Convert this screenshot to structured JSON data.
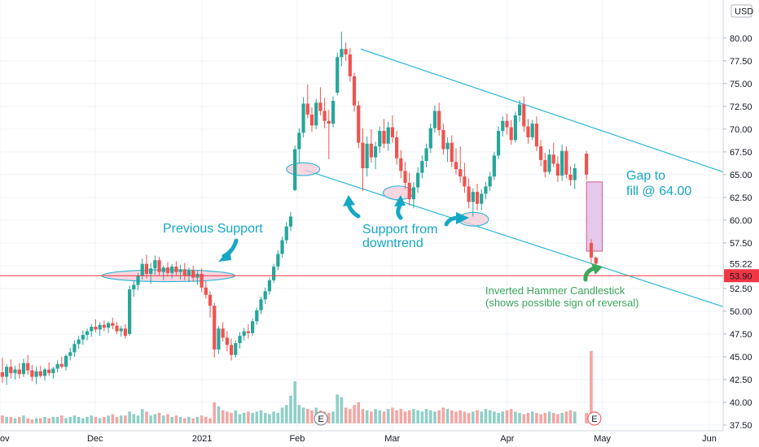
{
  "chart_data": {
    "type": "candlestick",
    "title": "",
    "currency": "USD",
    "current_price": 53.9,
    "last_close_marker": 55.22,
    "ylim": [
      37.0,
      82.5
    ],
    "y_ticks": [
      37.5,
      40.0,
      42.5,
      45.0,
      47.5,
      50.0,
      52.5,
      55.0,
      57.5,
      60.0,
      62.5,
      65.0,
      67.5,
      70.0,
      72.5,
      75.0,
      77.5,
      80.0
    ],
    "y_tick_labels": [
      "37.50",
      "40.00",
      "42.50",
      "45.00",
      "47.50",
      "50.00",
      "52.50",
      "55.00",
      "57.50",
      "60.00",
      "62.50",
      "65.00",
      "67.50",
      "70.00",
      "72.50",
      "75.00",
      "77.50",
      "80.00"
    ],
    "x_ticks": [
      {
        "label": "ov",
        "t": 0
      },
      {
        "label": "Dec",
        "t": 24
      },
      {
        "label": "2021",
        "t": 51
      },
      {
        "label": "Feb",
        "t": 75
      },
      {
        "label": "Mar",
        "t": 99
      },
      {
        "label": "Apr",
        "t": 128
      },
      {
        "label": "May",
        "t": 152
      },
      {
        "label": "Jun",
        "t": 179
      }
    ],
    "x_range": [
      0,
      182.5
    ],
    "colors": {
      "up": "#26a69a",
      "down": "#ef5350",
      "vol_up": "#8fcfc7",
      "vol_down": "#f5a5a3",
      "price_line": "#f23645",
      "channel": "#29b6d6",
      "gap_fill": "#e6c8ea",
      "gap_border": "#d05c8a",
      "ellipse_fill": "#f4c9d6",
      "ellipse_stroke": "#29b6d6",
      "blue_text": "#15a8c4",
      "green_text": "#3aa85a"
    },
    "candles": [
      [
        43.3,
        44.9,
        42.1,
        42.8
      ],
      [
        42.8,
        44.2,
        41.9,
        43.9
      ],
      [
        43.9,
        44.7,
        42.6,
        43.2
      ],
      [
        43.2,
        44.0,
        42.5,
        43.6
      ],
      [
        43.6,
        44.3,
        42.6,
        43.1
      ],
      [
        43.1,
        44.8,
        42.8,
        44.3
      ],
      [
        44.3,
        45.2,
        43.0,
        43.5
      ],
      [
        43.5,
        44.1,
        42.3,
        42.8
      ],
      [
        42.8,
        43.9,
        42.0,
        43.4
      ],
      [
        43.4,
        44.0,
        42.7,
        42.9
      ],
      [
        42.9,
        43.8,
        42.4,
        43.6
      ],
      [
        43.6,
        44.4,
        42.9,
        43.2
      ],
      [
        43.2,
        43.9,
        42.6,
        43.7
      ],
      [
        43.7,
        44.6,
        43.3,
        44.2
      ],
      [
        44.2,
        45.0,
        43.7,
        43.9
      ],
      [
        43.9,
        45.3,
        43.5,
        45.1
      ],
      [
        45.1,
        46.0,
        44.6,
        45.5
      ],
      [
        45.5,
        46.8,
        45.0,
        46.4
      ],
      [
        46.4,
        47.3,
        45.9,
        46.9
      ],
      [
        46.9,
        47.9,
        46.3,
        47.4
      ],
      [
        47.4,
        48.1,
        46.8,
        47.8
      ],
      [
        47.8,
        48.6,
        47.2,
        48.3
      ],
      [
        48.3,
        49.1,
        47.7,
        48.0
      ],
      [
        48.0,
        48.8,
        47.3,
        48.5
      ],
      [
        48.5,
        49.0,
        47.8,
        48.2
      ],
      [
        48.2,
        48.9,
        47.6,
        48.7
      ],
      [
        48.7,
        49.3,
        48.0,
        48.4
      ],
      [
        48.4,
        48.8,
        47.5,
        47.8
      ],
      [
        47.8,
        48.4,
        47.2,
        48.1
      ],
      [
        48.1,
        48.6,
        47.0,
        47.3
      ],
      [
        47.5,
        52.8,
        47.3,
        52.4
      ],
      [
        52.4,
        53.4,
        51.6,
        52.9
      ],
      [
        52.9,
        54.2,
        52.3,
        53.9
      ],
      [
        53.9,
        55.8,
        53.5,
        55.2
      ],
      [
        55.2,
        56.2,
        53.6,
        54.1
      ],
      [
        54.1,
        55.3,
        53.0,
        54.7
      ],
      [
        54.7,
        56.1,
        54.0,
        55.6
      ],
      [
        55.6,
        56.0,
        53.9,
        54.3
      ],
      [
        54.3,
        55.0,
        53.4,
        54.8
      ],
      [
        54.8,
        55.4,
        53.8,
        54.2
      ],
      [
        54.2,
        55.2,
        53.6,
        54.9
      ],
      [
        54.9,
        55.5,
        53.9,
        54.3
      ],
      [
        54.3,
        55.1,
        53.5,
        54.6
      ],
      [
        54.6,
        55.3,
        53.4,
        53.9
      ],
      [
        53.9,
        54.8,
        53.2,
        54.5
      ],
      [
        54.5,
        55.0,
        53.3,
        53.7
      ],
      [
        53.7,
        54.5,
        52.9,
        54.1
      ],
      [
        54.1,
        54.7,
        52.1,
        52.6
      ],
      [
        52.6,
        53.3,
        51.4,
        51.8
      ],
      [
        51.8,
        52.2,
        49.3,
        50.6
      ],
      [
        50.6,
        50.9,
        44.9,
        45.8
      ],
      [
        45.8,
        48.4,
        45.3,
        48.1
      ],
      [
        48.1,
        48.8,
        46.7,
        47.1
      ],
      [
        47.1,
        47.8,
        45.6,
        46.3
      ],
      [
        46.3,
        47.0,
        44.6,
        45.2
      ],
      [
        45.2,
        46.8,
        44.9,
        46.5
      ],
      [
        46.5,
        47.7,
        45.9,
        47.3
      ],
      [
        47.3,
        48.2,
        46.8,
        47.8
      ],
      [
        47.8,
        48.6,
        47.0,
        47.6
      ],
      [
        47.6,
        49.2,
        47.3,
        48.9
      ],
      [
        48.9,
        50.4,
        48.5,
        50.1
      ],
      [
        50.1,
        51.6,
        49.7,
        51.3
      ],
      [
        51.3,
        52.6,
        50.8,
        52.2
      ],
      [
        52.2,
        53.7,
        51.8,
        53.4
      ],
      [
        53.4,
        55.2,
        53.1,
        54.9
      ],
      [
        54.9,
        56.7,
        54.5,
        56.3
      ],
      [
        56.3,
        58.2,
        55.9,
        57.8
      ],
      [
        57.8,
        59.8,
        57.4,
        59.3
      ],
      [
        59.3,
        60.9,
        58.8,
        60.4
      ],
      [
        63.3,
        68.2,
        63.2,
        67.8
      ],
      [
        67.8,
        70.1,
        66.2,
        69.6
      ],
      [
        69.6,
        73.5,
        69.1,
        72.8
      ],
      [
        72.8,
        74.9,
        71.2,
        71.6
      ],
      [
        71.6,
        72.4,
        69.7,
        70.4
      ],
      [
        70.4,
        73.3,
        70.0,
        72.9
      ],
      [
        72.9,
        74.6,
        71.5,
        72.0
      ],
      [
        72.0,
        73.4,
        70.1,
        70.9
      ],
      [
        70.9,
        72.1,
        66.7,
        70.6
      ],
      [
        70.6,
        73.6,
        70.2,
        73.1
      ],
      [
        74.0,
        78.4,
        73.7,
        77.9
      ],
      [
        77.9,
        80.7,
        76.9,
        78.8
      ],
      [
        78.8,
        79.5,
        77.5,
        78.2
      ],
      [
        78.2,
        78.9,
        75.2,
        75.8
      ],
      [
        75.8,
        76.2,
        71.9,
        72.6
      ],
      [
        72.6,
        73.1,
        67.9,
        68.5
      ],
      [
        68.5,
        70.1,
        63.2,
        65.7
      ],
      [
        65.7,
        69.2,
        64.8,
        68.4
      ],
      [
        68.4,
        70.0,
        66.3,
        66.9
      ],
      [
        66.9,
        68.6,
        65.6,
        68.1
      ],
      [
        68.1,
        70.3,
        67.4,
        69.8
      ],
      [
        69.8,
        71.1,
        67.9,
        68.4
      ],
      [
        68.4,
        70.8,
        67.6,
        70.2
      ],
      [
        70.2,
        71.5,
        68.5,
        69.1
      ],
      [
        69.1,
        69.8,
        66.1,
        66.8
      ],
      [
        66.8,
        67.7,
        64.6,
        65.4
      ],
      [
        65.4,
        66.4,
        63.4,
        64.1
      ],
      [
        64.1,
        65.2,
        61.6,
        62.3
      ],
      [
        62.3,
        64.2,
        61.3,
        63.6
      ],
      [
        63.6,
        65.8,
        63.0,
        65.2
      ],
      [
        65.2,
        67.1,
        64.6,
        66.5
      ],
      [
        66.5,
        68.4,
        65.8,
        67.9
      ],
      [
        67.9,
        70.6,
        67.4,
        70.1
      ],
      [
        70.1,
        72.6,
        69.6,
        72.0
      ],
      [
        72.0,
        72.9,
        69.3,
        69.9
      ],
      [
        69.9,
        70.6,
        67.2,
        67.8
      ],
      [
        67.8,
        69.1,
        66.4,
        68.5
      ],
      [
        68.5,
        69.3,
        65.8,
        66.4
      ],
      [
        66.4,
        67.9,
        65.0,
        65.6
      ],
      [
        65.6,
        68.1,
        64.1,
        64.8
      ],
      [
        64.8,
        66.3,
        63.0,
        63.7
      ],
      [
        63.7,
        64.6,
        61.3,
        62.0
      ],
      [
        62.0,
        63.5,
        60.4,
        63.1
      ],
      [
        63.1,
        64.0,
        61.1,
        61.8
      ],
      [
        61.8,
        63.4,
        61.1,
        62.9
      ],
      [
        62.9,
        64.2,
        62.3,
        63.7
      ],
      [
        63.7,
        65.3,
        63.2,
        64.8
      ],
      [
        64.8,
        67.5,
        64.4,
        67.1
      ],
      [
        67.1,
        70.3,
        66.7,
        69.8
      ],
      [
        69.8,
        71.4,
        69.2,
        70.9
      ],
      [
        70.9,
        71.7,
        69.4,
        70.2
      ],
      [
        70.2,
        71.0,
        68.3,
        68.8
      ],
      [
        68.8,
        71.9,
        68.5,
        71.5
      ],
      [
        71.5,
        73.2,
        70.8,
        72.7
      ],
      [
        72.7,
        73.6,
        69.7,
        70.3
      ],
      [
        70.3,
        71.1,
        68.4,
        69.1
      ],
      [
        69.1,
        71.0,
        68.8,
        70.6
      ],
      [
        70.6,
        71.4,
        67.6,
        68.1
      ],
      [
        68.1,
        68.8,
        65.9,
        66.6
      ],
      [
        66.6,
        67.4,
        64.7,
        65.3
      ],
      [
        65.3,
        67.8,
        65.0,
        67.2
      ],
      [
        67.2,
        68.5,
        65.8,
        66.2
      ],
      [
        66.2,
        67.0,
        64.2,
        64.9
      ],
      [
        64.9,
        68.3,
        64.3,
        67.6
      ],
      [
        67.6,
        68.1,
        64.6,
        65.0
      ],
      [
        65.0,
        65.9,
        63.8,
        64.4
      ],
      [
        64.4,
        66.2,
        63.4,
        65.7
      ],
      [
        67.3,
        67.6,
        64.4,
        65.0
      ],
      [
        57.5,
        57.9,
        55.3,
        55.9
      ],
      [
        55.9,
        56.0,
        54.9,
        55.22
      ]
    ],
    "candle_t": "sequential_with_gaps",
    "volumes": [
      6,
      5,
      5,
      4,
      5,
      6,
      4,
      3,
      4,
      4,
      5,
      4,
      5,
      5,
      6,
      4,
      5,
      6,
      5,
      4,
      5,
      6,
      5,
      4,
      5,
      6,
      7,
      5,
      6,
      6,
      9,
      7,
      6,
      11,
      9,
      6,
      7,
      8,
      6,
      7,
      5,
      6,
      5,
      4,
      5,
      4,
      5,
      6,
      5,
      4,
      16,
      13,
      10,
      9,
      8,
      10,
      7,
      8,
      9,
      8,
      9,
      10,
      8,
      7,
      9,
      8,
      12,
      14,
      21,
      32,
      14,
      12,
      11,
      10,
      12,
      10,
      9,
      8,
      9,
      22,
      20,
      12,
      11,
      14,
      16,
      11,
      10,
      9,
      11,
      10,
      9,
      11,
      12,
      10,
      11,
      9,
      10,
      11,
      10,
      9,
      11,
      10,
      9,
      10,
      12,
      11,
      10,
      9,
      10,
      9,
      8,
      9,
      10,
      9,
      11,
      10,
      9,
      8,
      9,
      10,
      11,
      9,
      8,
      7,
      8,
      9,
      8,
      7,
      8,
      9,
      8,
      7,
      8,
      9,
      10,
      9,
      8,
      55,
      9
    ],
    "volume_scale_max": 80,
    "channel_upper": [
      {
        "t": 91,
        "y": 78.8
      },
      {
        "t": 182.5,
        "y": 65.3
      }
    ],
    "channel_lower": [
      {
        "t": 77,
        "y": 65.5
      },
      {
        "t": 182.5,
        "y": 50.5
      }
    ],
    "gap_box": {
      "t_start": 148,
      "t_end": 152,
      "y_top": 64.2,
      "y_bottom": 56.6
    },
    "ellipses": [
      {
        "t": 76.5,
        "y": 65.6,
        "rt": 4.2,
        "ry": 0.7
      },
      {
        "t": 100.5,
        "y": 63.0,
        "rt": 3.8,
        "ry": 0.75
      },
      {
        "t": 119.5,
        "y": 60.1,
        "rt": 3.8,
        "ry": 0.75
      },
      {
        "t": 42.5,
        "y": 53.9,
        "rt": 16.8,
        "ry": 0.65
      }
    ],
    "annotations": {
      "previous_support": "Previous Support",
      "support_line1": "Support from",
      "support_line2": "downtrend",
      "gap_line1": "Gap to",
      "gap_line2": "fill @ 64.00",
      "hammer_line1": "Inverted Hammer Candlestick",
      "hammer_line2": "(shows possible sign of reversal)"
    },
    "earnings_markers": [
      {
        "t": 81,
        "label": "E"
      },
      {
        "t": 150,
        "label": "E"
      }
    ]
  }
}
